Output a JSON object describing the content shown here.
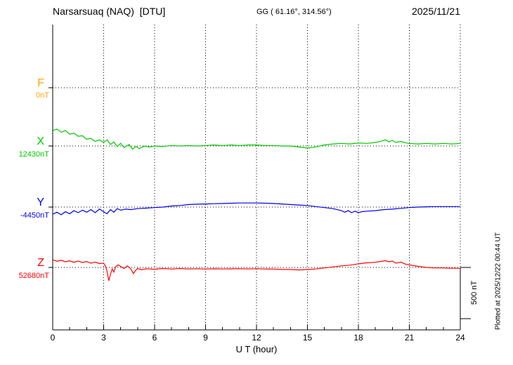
{
  "header": {
    "station": "Narsarsuaq (NAQ)  [DTU]",
    "coords": "GG ( 61.16°, 314.56°)",
    "date": "2025/11/21"
  },
  "side_note": "Plotted at 2025/12/22 00:44 UT",
  "scale_bar": {
    "label": "500 nT",
    "nT": 500
  },
  "axes": {
    "xlabel": "U T (hour)",
    "xticks": [
      0,
      3,
      6,
      9,
      12,
      15,
      18,
      21,
      24
    ]
  },
  "chart_data": {
    "type": "line",
    "title": "Narsarsuaq (NAQ) [DTU] magnetogram 2025/11/21",
    "xlabel": "U T (hour)",
    "xlim": [
      0,
      24
    ],
    "grid": "dotted vertical every 3 hours, dotted horizontal baseline per channel",
    "scale_bar_nT": 500,
    "series": [
      {
        "name": "F",
        "baseline_label": "0nT",
        "baseline_nT": 0,
        "color": "#ffa500",
        "points": []
      },
      {
        "name": "X",
        "baseline_label": "12430nT",
        "baseline_nT": 12430,
        "color": "#00c800",
        "points": [
          [
            0,
            150
          ],
          [
            0.25,
            165
          ],
          [
            0.5,
            135
          ],
          [
            0.75,
            150
          ],
          [
            1,
            115
          ],
          [
            1.25,
            125
          ],
          [
            1.5,
            95
          ],
          [
            1.75,
            100
          ],
          [
            2,
            65
          ],
          [
            2.25,
            75
          ],
          [
            2.5,
            45
          ],
          [
            2.75,
            60
          ],
          [
            3,
            35
          ],
          [
            3.2,
            60
          ],
          [
            3.4,
            15
          ],
          [
            3.6,
            40
          ],
          [
            3.8,
            -5
          ],
          [
            4,
            25
          ],
          [
            4.2,
            -15
          ],
          [
            4.5,
            15
          ],
          [
            4.7,
            -30
          ],
          [
            4.9,
            -5
          ],
          [
            5.1,
            -25
          ],
          [
            5.4,
            0
          ],
          [
            5.7,
            -10
          ],
          [
            6,
            0
          ],
          [
            6.5,
            -5
          ],
          [
            7,
            5
          ],
          [
            7.5,
            0
          ],
          [
            8,
            5
          ],
          [
            8.5,
            0
          ],
          [
            9,
            5
          ],
          [
            9.5,
            10
          ],
          [
            10,
            5
          ],
          [
            10.5,
            10
          ],
          [
            11,
            5
          ],
          [
            11.5,
            10
          ],
          [
            12,
            10
          ],
          [
            12.5,
            5
          ],
          [
            13,
            5
          ],
          [
            13.5,
            0
          ],
          [
            14,
            0
          ],
          [
            14.5,
            -10
          ],
          [
            15,
            -20
          ],
          [
            15.3,
            -15
          ],
          [
            15.6,
            -5
          ],
          [
            16,
            10
          ],
          [
            16.5,
            20
          ],
          [
            17,
            25
          ],
          [
            17.5,
            20
          ],
          [
            18,
            30
          ],
          [
            18.5,
            25
          ],
          [
            19,
            35
          ],
          [
            19.3,
            45
          ],
          [
            19.6,
            60
          ],
          [
            19.8,
            40
          ],
          [
            20,
            55
          ],
          [
            20.2,
            35
          ],
          [
            20.5,
            45
          ],
          [
            20.8,
            30
          ],
          [
            21,
            25
          ],
          [
            21.5,
            20
          ],
          [
            22,
            25
          ],
          [
            22.5,
            20
          ],
          [
            23,
            25
          ],
          [
            23.5,
            20
          ],
          [
            24,
            25
          ]
        ]
      },
      {
        "name": "Y",
        "baseline_label": "-4450nT",
        "baseline_nT": -4450,
        "color": "#0000ee",
        "points": [
          [
            0,
            -70
          ],
          [
            0.25,
            -50
          ],
          [
            0.5,
            -75
          ],
          [
            0.75,
            -45
          ],
          [
            1,
            -65
          ],
          [
            1.25,
            -35
          ],
          [
            1.5,
            -55
          ],
          [
            1.75,
            -30
          ],
          [
            2,
            -50
          ],
          [
            2.25,
            -25
          ],
          [
            2.5,
            -55
          ],
          [
            2.75,
            -20
          ],
          [
            3,
            -45
          ],
          [
            3.2,
            -65
          ],
          [
            3.4,
            -25
          ],
          [
            3.6,
            -50
          ],
          [
            3.8,
            -15
          ],
          [
            4,
            -30
          ],
          [
            4.3,
            -20
          ],
          [
            4.6,
            -25
          ],
          [
            5,
            -15
          ],
          [
            5.5,
            -10
          ],
          [
            6,
            -5
          ],
          [
            6.5,
            0
          ],
          [
            7,
            10
          ],
          [
            7.5,
            15
          ],
          [
            8,
            25
          ],
          [
            8.5,
            28
          ],
          [
            9,
            30
          ],
          [
            9.5,
            33
          ],
          [
            10,
            35
          ],
          [
            10.5,
            38
          ],
          [
            11,
            40
          ],
          [
            11.5,
            40
          ],
          [
            12,
            40
          ],
          [
            12.5,
            38
          ],
          [
            13,
            35
          ],
          [
            13.5,
            30
          ],
          [
            14,
            25
          ],
          [
            14.5,
            20
          ],
          [
            15,
            15
          ],
          [
            15.5,
            5
          ],
          [
            16,
            -5
          ],
          [
            16.5,
            -15
          ],
          [
            17,
            -35
          ],
          [
            17.2,
            -50
          ],
          [
            17.4,
            -35
          ],
          [
            17.6,
            -55
          ],
          [
            17.8,
            -40
          ],
          [
            18,
            -55
          ],
          [
            18.2,
            -45
          ],
          [
            18.5,
            -40
          ],
          [
            19,
            -35
          ],
          [
            19.5,
            -25
          ],
          [
            20,
            -20
          ],
          [
            20.5,
            -12
          ],
          [
            21,
            -5
          ],
          [
            21.5,
            0
          ],
          [
            22,
            3
          ],
          [
            22.5,
            5
          ],
          [
            23,
            5
          ],
          [
            23.5,
            5
          ],
          [
            24,
            5
          ]
        ]
      },
      {
        "name": "Z",
        "baseline_label": "52680nT",
        "baseline_nT": 52680,
        "color": "#ff0000",
        "points": [
          [
            0,
            75
          ],
          [
            0.25,
            60
          ],
          [
            0.5,
            70
          ],
          [
            0.75,
            55
          ],
          [
            1,
            65
          ],
          [
            1.25,
            50
          ],
          [
            1.5,
            62
          ],
          [
            1.75,
            48
          ],
          [
            2,
            58
          ],
          [
            2.25,
            42
          ],
          [
            2.5,
            52
          ],
          [
            2.75,
            38
          ],
          [
            3,
            42
          ],
          [
            3.1,
            15
          ],
          [
            3.2,
            -35
          ],
          [
            3.3,
            -130
          ],
          [
            3.4,
            -65
          ],
          [
            3.5,
            -15
          ],
          [
            3.6,
            -45
          ],
          [
            3.7,
            5
          ],
          [
            3.85,
            25
          ],
          [
            4,
            10
          ],
          [
            4.2,
            -10
          ],
          [
            4.4,
            15
          ],
          [
            4.6,
            -15
          ],
          [
            4.75,
            -60
          ],
          [
            4.9,
            -25
          ],
          [
            5,
            -10
          ],
          [
            5.25,
            -22
          ],
          [
            5.5,
            -12
          ],
          [
            6,
            -18
          ],
          [
            6.5,
            -10
          ],
          [
            7,
            -16
          ],
          [
            7.5,
            -10
          ],
          [
            8,
            -15
          ],
          [
            8.5,
            -12
          ],
          [
            9,
            -16
          ],
          [
            9.5,
            -13
          ],
          [
            10,
            -15
          ],
          [
            10.5,
            -14
          ],
          [
            11,
            -12
          ],
          [
            11.5,
            -15
          ],
          [
            12,
            -12
          ],
          [
            12.5,
            -15
          ],
          [
            13,
            -16
          ],
          [
            13.5,
            -20
          ],
          [
            14,
            -20
          ],
          [
            14.5,
            -25
          ],
          [
            15,
            -20
          ],
          [
            15.5,
            -15
          ],
          [
            16,
            -5
          ],
          [
            16.5,
            5
          ],
          [
            17,
            15
          ],
          [
            17.5,
            22
          ],
          [
            18,
            35
          ],
          [
            18.5,
            45
          ],
          [
            19,
            50
          ],
          [
            19.3,
            58
          ],
          [
            19.6,
            66
          ],
          [
            19.8,
            55
          ],
          [
            20,
            62
          ],
          [
            20.2,
            42
          ],
          [
            20.5,
            52
          ],
          [
            20.8,
            30
          ],
          [
            21,
            25
          ],
          [
            21.5,
            10
          ],
          [
            22,
            0
          ],
          [
            22.5,
            -5
          ],
          [
            23,
            -5
          ],
          [
            23.5,
            -8
          ],
          [
            24,
            -8
          ]
        ]
      }
    ]
  }
}
